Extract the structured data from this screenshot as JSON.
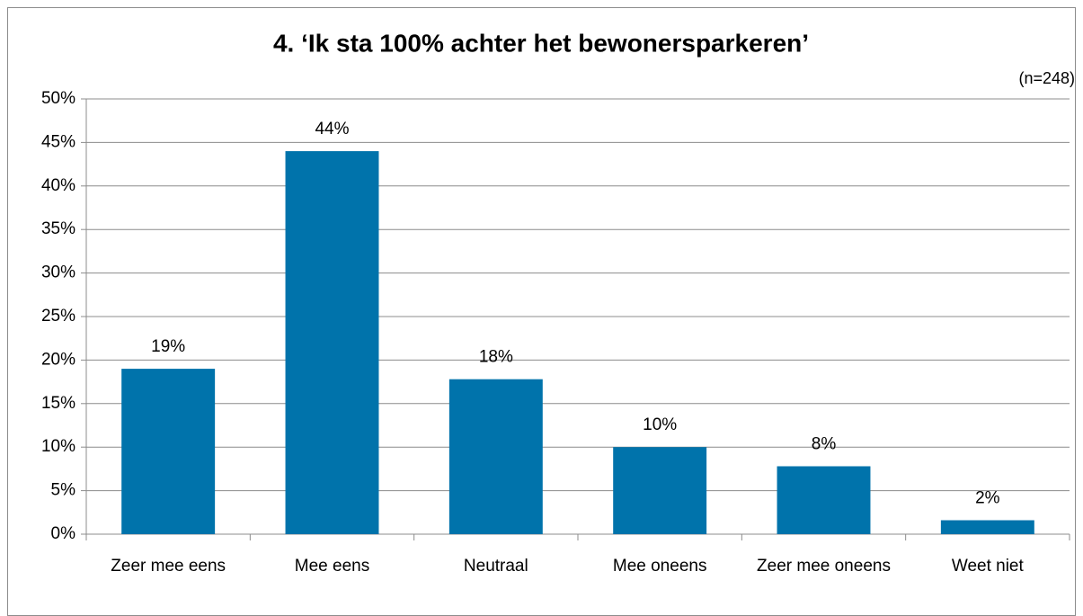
{
  "chart_data": {
    "type": "bar",
    "title": "4. ‘Ik sta 100% achter het bewonersparkeren’",
    "annotation": "(n=248)",
    "categories": [
      "Zeer mee eens",
      "Mee eens",
      "Neutraal",
      "Mee oneens",
      "Zeer mee oneens",
      "Weet niet"
    ],
    "values": [
      19,
      44,
      17.8,
      10,
      7.8,
      1.6
    ],
    "value_labels": [
      "19%",
      "44%",
      "18%",
      "10%",
      "8%",
      "2%"
    ],
    "color": "#0073ab",
    "ylim": [
      0,
      50
    ],
    "yticks": [
      {
        "value": 0,
        "label": "0%"
      },
      {
        "value": 5,
        "label": "5%"
      },
      {
        "value": 10,
        "label": "10%"
      },
      {
        "value": 15,
        "label": "15%"
      },
      {
        "value": 20,
        "label": "20%"
      },
      {
        "value": 25,
        "label": "25%"
      },
      {
        "value": 30,
        "label": "30%"
      },
      {
        "value": 35,
        "label": "35%"
      },
      {
        "value": 40,
        "label": "40%"
      },
      {
        "value": 45,
        "label": "45%"
      },
      {
        "value": 50,
        "label": "50%"
      }
    ],
    "grid": true
  }
}
